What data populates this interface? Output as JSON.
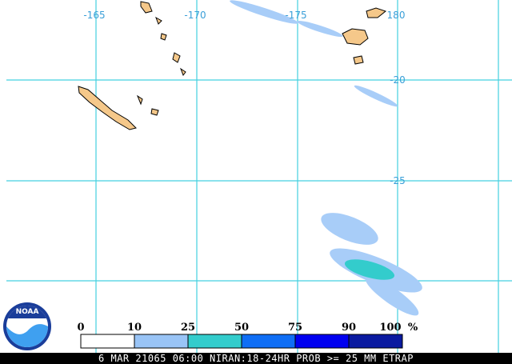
{
  "map": {
    "longitude_labels": [
      "-165",
      "-170",
      "-175",
      "180"
    ],
    "latitude_labels": [
      "-20",
      "-25"
    ]
  },
  "legend": {
    "labels": [
      "0",
      "10",
      "25",
      "50",
      "75",
      "90",
      "100"
    ],
    "unit": "%",
    "colors": [
      "#ffffff",
      "#99c4f6",
      "#33cccc",
      "#0f6ef5",
      "#0000f0",
      "#0a1aa0"
    ]
  },
  "footer": "6 MAR 21065 06:00 NIRAN:18-24HR PROB >= 25 MM ETRAP",
  "logo": "NOAA"
}
